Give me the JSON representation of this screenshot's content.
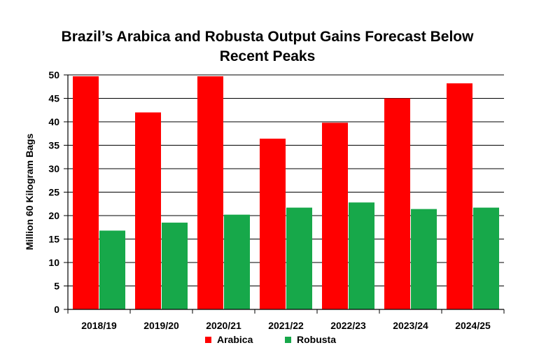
{
  "chart_data": {
    "type": "bar",
    "title_lines": [
      "Brazil’s Arabica and Robusta Output Gains Forecast Below",
      "Recent Peaks"
    ],
    "xlabel": "",
    "ylabel": "Million 60 Kilogram Bags",
    "ylim": [
      0,
      50
    ],
    "yticks": [
      0,
      5,
      10,
      15,
      20,
      25,
      30,
      35,
      40,
      45,
      50
    ],
    "grid": true,
    "legend_position": "bottom",
    "categories": [
      "2018/19",
      "2019/20",
      "2020/21",
      "2021/22",
      "2022/23",
      "2023/24",
      "2024/25"
    ],
    "series": [
      {
        "name": "Arabica",
        "color": "#ff0000",
        "values": [
          49.7,
          42.0,
          49.7,
          36.4,
          39.8,
          45.0,
          48.2
        ]
      },
      {
        "name": "Robusta",
        "color": "#17a84a",
        "values": [
          16.8,
          18.5,
          20.2,
          21.7,
          22.8,
          21.4,
          21.7
        ]
      }
    ]
  }
}
